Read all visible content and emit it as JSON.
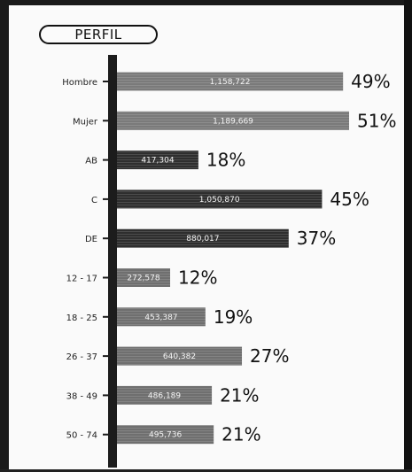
{
  "header": {
    "title": "PERFIL"
  },
  "chart_data": {
    "type": "bar",
    "orientation": "horizontal",
    "title": "PERFIL",
    "categories": [
      "Hombre",
      "Mujer",
      "AB",
      "C",
      "DE",
      "12 - 17",
      "18 - 25",
      "26 - 37",
      "38 - 49",
      "50 - 74"
    ],
    "values": [
      1158722,
      1189669,
      417304,
      1050870,
      880017,
      272578,
      453387,
      640382,
      486189,
      495736
    ],
    "value_labels": [
      "1,158,722",
      "1,189,669",
      "417,304",
      "1,050,870",
      "880,017",
      "272,578",
      "453,387",
      "640,382",
      "486,189",
      "495,736"
    ],
    "percent_labels": [
      "49%",
      "51%",
      "18%",
      "45%",
      "37%",
      "12%",
      "19%",
      "27%",
      "21%",
      "21%"
    ],
    "bar_colors": [
      "#7a7a7a",
      "#7a7a7a",
      "#2e2e2e",
      "#2e2e2e",
      "#2e2e2e",
      "#6f6f6f",
      "#6f6f6f",
      "#6f6f6f",
      "#6f6f6f",
      "#6f6f6f"
    ],
    "grid": false,
    "legend": "none",
    "xlim": [
      0,
      1189669
    ]
  }
}
